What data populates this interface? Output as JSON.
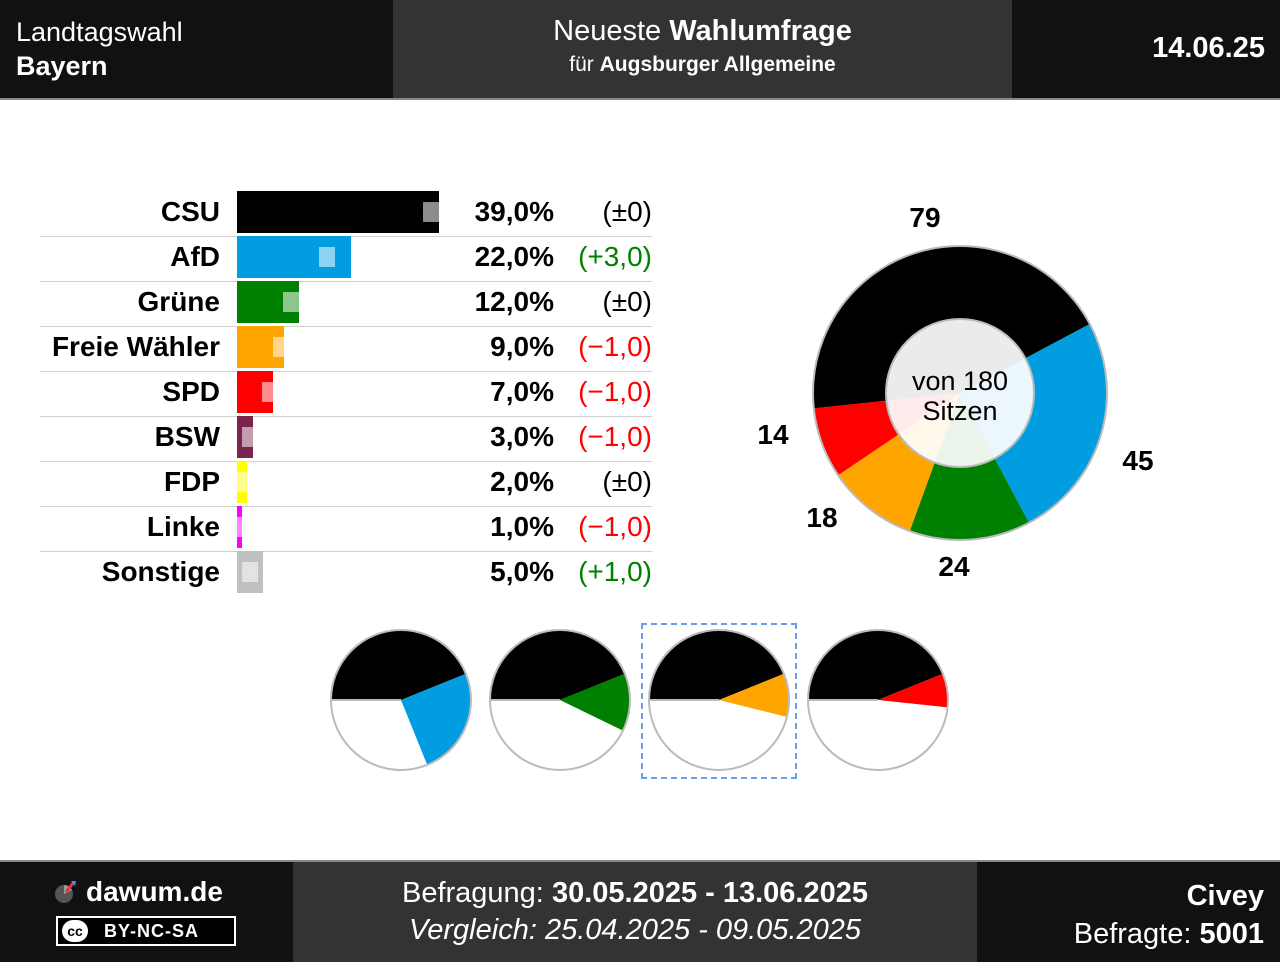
{
  "header": {
    "title_line1": "Landtagswahl",
    "title_line2": "Bayern",
    "subtitle_prefix": "Neueste",
    "subtitle_bold": "Wahlumfrage",
    "for_prefix": "für",
    "for_bold": "Augsburger Allgemeine",
    "date": "14.06.25"
  },
  "chart_data": [
    {
      "type": "bar",
      "orientation": "horizontal",
      "categories": [
        "CSU",
        "AfD",
        "Grüne",
        "Freie Wähler",
        "SPD",
        "BSW",
        "FDP",
        "Linke",
        "Sonstige"
      ],
      "values": [
        39.0,
        22.0,
        12.0,
        9.0,
        7.0,
        3.0,
        2.0,
        1.0,
        5.0
      ],
      "value_labels": [
        "39,0%",
        "22,0%",
        "12,0%",
        "9,0%",
        "7,0%",
        "3,0%",
        "2,0%",
        "1,0%",
        "5,0%"
      ],
      "previous_values": [
        39.0,
        19.0,
        12.0,
        10.0,
        8.0,
        4.0,
        2.0,
        2.0,
        4.0
      ],
      "changes": [
        0.0,
        3.0,
        0.0,
        -1.0,
        -1.0,
        -1.0,
        0.0,
        -1.0,
        1.0
      ],
      "change_labels": [
        "(±0)",
        "(+3,0)",
        "(±0)",
        "(−1,0)",
        "(−1,0)",
        "(−1,0)",
        "(±0)",
        "(−1,0)",
        "(+1,0)"
      ],
      "colors": [
        "#000000",
        "#009ee0",
        "#008000",
        "#ffa500",
        "#ff0000",
        "#7b2450",
        "#ffff00",
        "#ff00ff",
        "#c0c0c0"
      ],
      "unit": "%"
    },
    {
      "type": "pie",
      "subtype": "donut",
      "title": "von 180 Sitzen",
      "categories": [
        "CSU",
        "AfD",
        "Grüne",
        "Freie Wähler",
        "SPD"
      ],
      "values": [
        79,
        45,
        24,
        18,
        14
      ],
      "value_labels": [
        "79",
        "45",
        "24",
        "18",
        "14"
      ],
      "colors": [
        "#000000",
        "#009ee0",
        "#008000",
        "#ffa500",
        "#ff0000"
      ],
      "total": 180
    },
    {
      "type": "pie",
      "subtype": "coalition-semicircles",
      "coalitions": [
        {
          "parties": [
            "CSU",
            "AfD"
          ],
          "seats": [
            79,
            45
          ],
          "highlighted": false
        },
        {
          "parties": [
            "CSU",
            "Grüne"
          ],
          "seats": [
            79,
            24
          ],
          "highlighted": false
        },
        {
          "parties": [
            "CSU",
            "Freie Wähler"
          ],
          "seats": [
            79,
            18
          ],
          "highlighted": true
        },
        {
          "parties": [
            "CSU",
            "SPD"
          ],
          "seats": [
            79,
            14
          ],
          "highlighted": false
        }
      ],
      "total": 180
    }
  ],
  "footer": {
    "site": "dawum.de",
    "license": "BY-NC-SA",
    "license_cc": "cc",
    "survey_prefix": "Befragung:",
    "survey_range": "30.05.2025 - 13.06.2025",
    "compare_line": "Vergleich: 25.04.2025 - 09.05.2025",
    "institute": "Civey",
    "respondents_prefix": "Befragte:",
    "respondents": "5001"
  }
}
